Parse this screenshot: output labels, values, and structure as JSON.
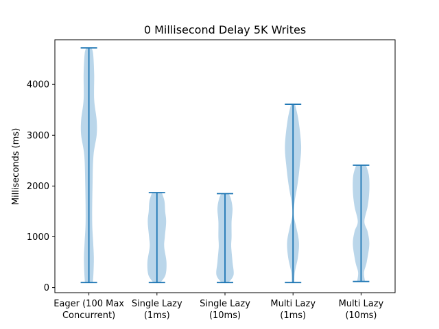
{
  "chart_data": {
    "type": "violin",
    "title": "0 Millisecond Delay 5K Writes",
    "xlabel": "",
    "ylabel": "Milliseconds (ms)",
    "ylim": [
      -100,
      4880
    ],
    "yticks": [
      0,
      1000,
      2000,
      3000,
      4000
    ],
    "grid": false,
    "categories": [
      {
        "label_lines": [
          "Eager (100 Max",
          "Concurrent)"
        ],
        "min": 100,
        "max": 4720
      },
      {
        "label_lines": [
          "Single Lazy",
          "(1ms)"
        ],
        "min": 100,
        "max": 1870
      },
      {
        "label_lines": [
          "Single Lazy",
          "(10ms)"
        ],
        "min": 100,
        "max": 1850
      },
      {
        "label_lines": [
          "Multi Lazy",
          "(1ms)"
        ],
        "min": 100,
        "max": 3610
      },
      {
        "label_lines": [
          "Multi Lazy",
          "(10ms)"
        ],
        "min": 120,
        "max": 2410
      }
    ],
    "density_profiles": [
      [
        [
          100,
          0.24
        ],
        [
          300,
          0.28
        ],
        [
          600,
          0.3
        ],
        [
          900,
          0.26
        ],
        [
          1300,
          0.2
        ],
        [
          2000,
          0.22
        ],
        [
          2600,
          0.28
        ],
        [
          3000,
          0.47
        ],
        [
          3300,
          0.47
        ],
        [
          3700,
          0.32
        ],
        [
          4200,
          0.32
        ],
        [
          4600,
          0.26
        ],
        [
          4720,
          0.16
        ]
      ],
      [
        [
          100,
          0.22
        ],
        [
          250,
          0.52
        ],
        [
          500,
          0.58
        ],
        [
          800,
          0.44
        ],
        [
          1000,
          0.48
        ],
        [
          1300,
          0.56
        ],
        [
          1500,
          0.5
        ],
        [
          1700,
          0.46
        ],
        [
          1870,
          0.3
        ]
      ],
      [
        [
          100,
          0.22
        ],
        [
          250,
          0.52
        ],
        [
          500,
          0.46
        ],
        [
          800,
          0.38
        ],
        [
          1000,
          0.4
        ],
        [
          1300,
          0.4
        ],
        [
          1550,
          0.46
        ],
        [
          1750,
          0.36
        ],
        [
          1850,
          0.22
        ]
      ],
      [
        [
          100,
          0.08
        ],
        [
          300,
          0.11
        ],
        [
          600,
          0.3
        ],
        [
          900,
          0.36
        ],
        [
          1200,
          0.19
        ],
        [
          1450,
          0.03
        ],
        [
          1700,
          0.1
        ],
        [
          2000,
          0.26
        ],
        [
          2400,
          0.41
        ],
        [
          2800,
          0.49
        ],
        [
          3300,
          0.33
        ],
        [
          3610,
          0.12
        ]
      ],
      [
        [
          120,
          0.24
        ],
        [
          300,
          0.18
        ],
        [
          500,
          0.34
        ],
        [
          850,
          0.5
        ],
        [
          1100,
          0.4
        ],
        [
          1300,
          0.2
        ],
        [
          1600,
          0.4
        ],
        [
          1900,
          0.5
        ],
        [
          2200,
          0.48
        ],
        [
          2410,
          0.3
        ]
      ]
    ],
    "colors": {
      "body": "#bad6ea",
      "lines": "#1f77b4"
    }
  }
}
